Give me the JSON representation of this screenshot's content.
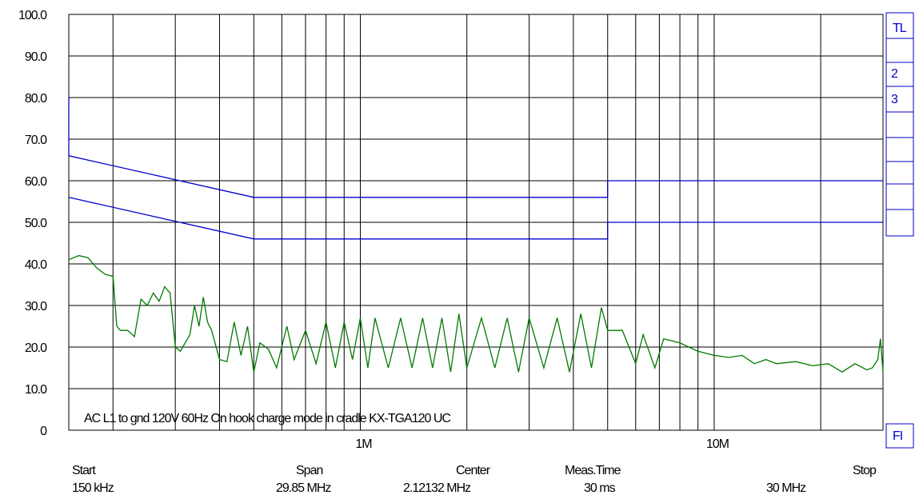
{
  "chart_data": {
    "type": "line",
    "xscale": "log",
    "grid": true,
    "xlim": [
      0.15,
      30
    ],
    "ylim": [
      0,
      100
    ],
    "yticks": [
      0,
      {
        "value": 10,
        "label": "10.0"
      },
      {
        "value": 20,
        "label": "20.0"
      },
      {
        "value": 30,
        "label": "30.0"
      },
      {
        "value": 40,
        "label": "40.0"
      },
      {
        "value": 50,
        "label": "50.0"
      },
      {
        "value": 60,
        "label": "60.0"
      },
      {
        "value": 70,
        "label": "70.0"
      },
      {
        "value": 80,
        "label": "80.0"
      },
      {
        "value": 90,
        "label": "90.0"
      },
      {
        "value": 100,
        "label": "100.0"
      }
    ],
    "xticks": [
      {
        "value": 1,
        "label": "1M"
      },
      {
        "value": 10,
        "label": "10M"
      }
    ],
    "xgrid_minor": [
      0.2,
      0.3,
      0.4,
      0.5,
      0.6,
      0.7,
      0.8,
      0.9,
      2,
      3,
      4,
      5,
      6,
      7,
      8,
      9,
      20
    ],
    "annotation": "AC L1 to gnd 120V 60Hz On hook charge mode in cradle KX-TGA120 UC",
    "series": [
      {
        "color": "#0000cc",
        "x": [
          0.15,
          0.15,
          0.5,
          5,
          5,
          30
        ],
        "values": [
          80,
          66,
          56,
          56,
          60,
          60
        ]
      },
      {
        "color": "#0000cc",
        "x": [
          0.15,
          0.5,
          5,
          5,
          30
        ],
        "values": [
          56,
          46,
          46,
          50,
          50
        ]
      },
      {
        "color": "#007a00",
        "x": [
          0.15,
          0.16,
          0.17,
          0.18,
          0.19,
          0.2,
          0.205,
          0.21,
          0.22,
          0.23,
          0.24,
          0.25,
          0.26,
          0.27,
          0.28,
          0.29,
          0.3,
          0.31,
          0.33,
          0.34,
          0.35,
          0.36,
          0.37,
          0.38,
          0.4,
          0.42,
          0.44,
          0.46,
          0.48,
          0.5,
          0.52,
          0.55,
          0.58,
          0.62,
          0.65,
          0.7,
          0.75,
          0.8,
          0.85,
          0.9,
          0.95,
          1.0,
          1.05,
          1.1,
          1.2,
          1.3,
          1.4,
          1.5,
          1.6,
          1.7,
          1.8,
          1.9,
          2.0,
          2.2,
          2.4,
          2.6,
          2.8,
          3.0,
          3.3,
          3.6,
          3.9,
          4.2,
          4.5,
          4.8,
          5.0,
          5.5,
          6.0,
          6.3,
          6.8,
          7.2,
          8.0,
          9.0,
          10,
          11,
          12,
          13,
          14,
          15,
          17,
          19,
          21,
          23,
          25,
          27,
          28,
          29,
          29.5,
          30
        ],
        "values": [
          41,
          42,
          41.5,
          39,
          37.5,
          37,
          25,
          24,
          24,
          22.5,
          31.5,
          30,
          33,
          31,
          34.5,
          33,
          20,
          19,
          23,
          30,
          25,
          32,
          26,
          24,
          17,
          16.5,
          26,
          18,
          25,
          14,
          21,
          19.5,
          15,
          25,
          17,
          24,
          16,
          26,
          15,
          26,
          17,
          27,
          15,
          27,
          15,
          27,
          15,
          27,
          15,
          27,
          14,
          28,
          15,
          27,
          15,
          27,
          14,
          27,
          15,
          27,
          14,
          28,
          15,
          29.5,
          24,
          24,
          16,
          23,
          15,
          22,
          21,
          19,
          18,
          17.5,
          18,
          16,
          17,
          16,
          16.5,
          15.5,
          16,
          14,
          16,
          14.5,
          15,
          17,
          22,
          14
        ]
      }
    ],
    "side_panel": [
      "TL",
      "2",
      "3",
      "FI"
    ],
    "footer": [
      {
        "label": "Start",
        "value": "150 kHz"
      },
      {
        "label": "Span",
        "value": "29.85 MHz"
      },
      {
        "label": "Center",
        "value": "2.12132 MHz"
      },
      {
        "label": "Meas.Time",
        "value": "30 ms"
      },
      {
        "label": "Stop",
        "value": "30 MHz"
      }
    ]
  }
}
